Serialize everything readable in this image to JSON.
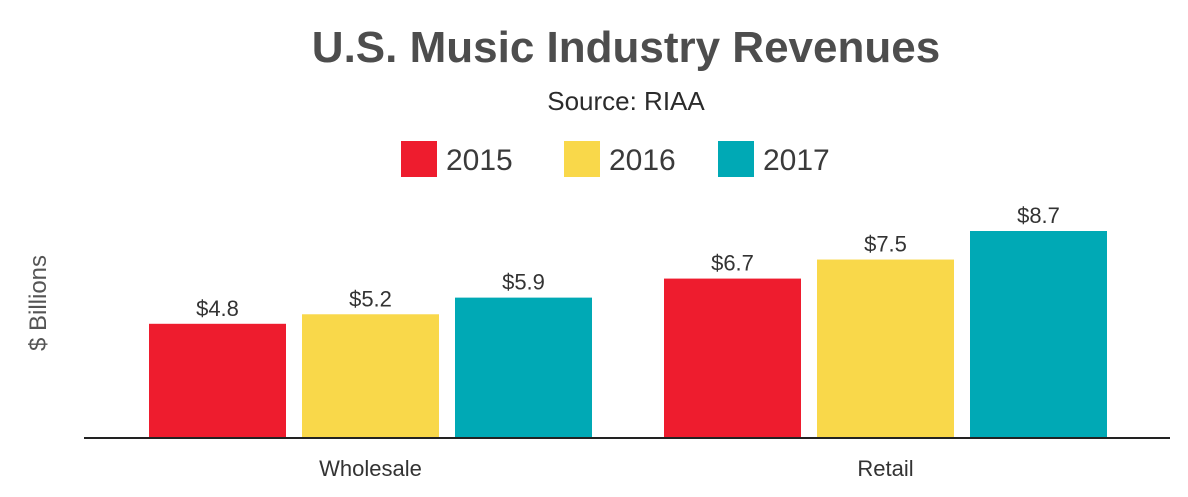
{
  "chart_data": {
    "type": "bar",
    "title": "U.S. Music Industry Revenues",
    "subtitle": "Source: RIAA",
    "xlabel": "",
    "ylabel": "$ Billions",
    "categories": [
      "Wholesale",
      "Retail"
    ],
    "series": [
      {
        "name": "2015",
        "color": "#ee1c2e",
        "values": [
          4.8,
          6.7
        ],
        "labels": [
          "$4.8",
          "$6.7"
        ]
      },
      {
        "name": "2016",
        "color": "#f9d84a",
        "values": [
          5.2,
          7.5
        ],
        "labels": [
          "$5.2",
          "$7.5"
        ]
      },
      {
        "name": "2017",
        "color": "#00a9b5",
        "values": [
          5.9,
          8.7
        ],
        "labels": [
          "$5.9",
          "$8.7"
        ]
      }
    ],
    "ylim": [
      0,
      8.7
    ],
    "grid": false,
    "y_ticks_shown": false,
    "legend_position": "top-center"
  }
}
